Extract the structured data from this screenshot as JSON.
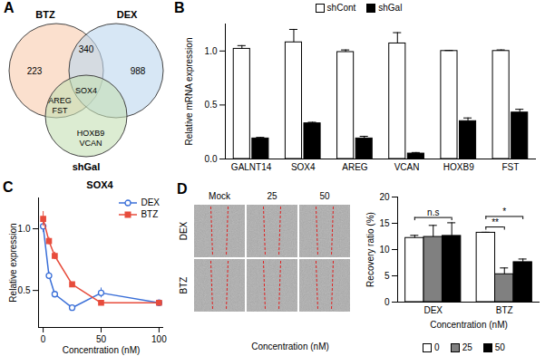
{
  "venn": {
    "panel": "A",
    "sets": [
      {
        "name": "BTZ",
        "color": "#f8cbad"
      },
      {
        "name": "DEX",
        "color": "#bdd7ee"
      },
      {
        "name": "shGal",
        "color": "#c5e0b4"
      }
    ],
    "regions": [
      {
        "sets": [
          "BTZ"
        ],
        "count": 223
      },
      {
        "sets": [
          "BTZ",
          "DEX"
        ],
        "count": 340
      },
      {
        "sets": [
          "DEX"
        ],
        "count": 988
      },
      {
        "sets": [
          "BTZ",
          "DEX",
          "shGal"
        ],
        "genes": [
          "SOX4"
        ]
      },
      {
        "sets": [
          "BTZ",
          "shGal"
        ],
        "genes": [
          "AREG",
          "FST"
        ]
      },
      {
        "sets": [
          "shGal"
        ],
        "genes": [
          "HOXB9",
          "VCAN"
        ]
      }
    ]
  },
  "wound_images": {
    "panel": "D",
    "rows": [
      "DEX",
      "BTZ"
    ],
    "columns": [
      "Mock",
      "25",
      "50"
    ],
    "xlabel": "Concentration (nM)"
  },
  "chart_data": [
    {
      "type": "bar",
      "panel": "B",
      "categories": [
        "GALNT14",
        "SOX4",
        "AREG",
        "VCAN",
        "HOXB9",
        "FST"
      ],
      "series": [
        {
          "name": "shCont",
          "color": "#ffffff",
          "values": [
            1.02,
            1.08,
            0.99,
            1.07,
            1.0,
            1.0
          ],
          "errors": [
            0.03,
            0.12,
            0.02,
            0.1,
            0.005,
            0.01
          ]
        },
        {
          "name": "shGal",
          "color": "#000000",
          "values": [
            0.19,
            0.33,
            0.19,
            0.05,
            0.35,
            0.43
          ],
          "errors": [
            0.01,
            0.01,
            0.02,
            0.01,
            0.03,
            0.03
          ]
        }
      ],
      "ylabel": "Relative mRNA expression",
      "ylim": [
        0,
        1.25
      ],
      "yticks": [
        {
          "value": 0,
          "label": "0.0"
        },
        0.5,
        {
          "value": 1,
          "label": "1.0"
        }
      ],
      "legend": "top",
      "grid": false
    },
    {
      "type": "line",
      "panel": "C",
      "title": "SOX4",
      "x": [
        0,
        5,
        10,
        25,
        50,
        100
      ],
      "series": [
        {
          "name": "DEX",
          "color": "#3a6fd8",
          "marker": "open circle",
          "values": [
            1.02,
            0.62,
            0.47,
            0.36,
            0.48,
            0.4
          ],
          "errors": [
            0.05,
            0.03,
            0.02,
            0.01,
            0.04,
            0.01
          ]
        },
        {
          "name": "BTZ",
          "color": "#e74c3c",
          "marker": "square",
          "values": [
            1.08,
            0.9,
            0.78,
            0.55,
            0.4,
            0.4
          ],
          "errors": [
            0.06,
            0.03,
            0.03,
            0.01,
            0.02,
            0.01
          ]
        }
      ],
      "xlabel": "Concentration (nM)",
      "ylabel": "Relative expression",
      "xlim": [
        -4,
        104
      ],
      "xticks": [
        0,
        50,
        100
      ],
      "ylim": [
        0.2,
        1.25
      ],
      "yticks": [
        0.5,
        {
          "value": 1,
          "label": "1.0"
        }
      ],
      "legend": "top-right",
      "grid": false
    },
    {
      "type": "bar",
      "panel": "D",
      "categories": [
        "DEX",
        "BTZ"
      ],
      "series": [
        {
          "name": "0",
          "color": "#ffffff",
          "values": [
            12.2,
            13.2
          ],
          "errors": [
            0.5,
            0.1
          ]
        },
        {
          "name": "25",
          "color": "#808080",
          "values": [
            12.4,
            5.3
          ],
          "errors": [
            2.2,
            1.2
          ]
        },
        {
          "name": "50",
          "color": "#000000",
          "values": [
            12.6,
            7.6
          ],
          "errors": [
            2.5,
            0.6
          ]
        }
      ],
      "xlabel": "Concentration (nM)",
      "ylabel": "Recovery ratio (%)",
      "ylim": [
        0,
        20
      ],
      "yticks": [
        0,
        5,
        10,
        15,
        20
      ],
      "legend": "bottom",
      "grid": false,
      "annotations": [
        {
          "category": "DEX",
          "from": "0",
          "to": "50",
          "text": "n.s"
        },
        {
          "category": "BTZ",
          "from": "0",
          "to": "25",
          "text": "**"
        },
        {
          "category": "BTZ",
          "from": "0",
          "to": "50",
          "text": "*"
        }
      ]
    }
  ]
}
